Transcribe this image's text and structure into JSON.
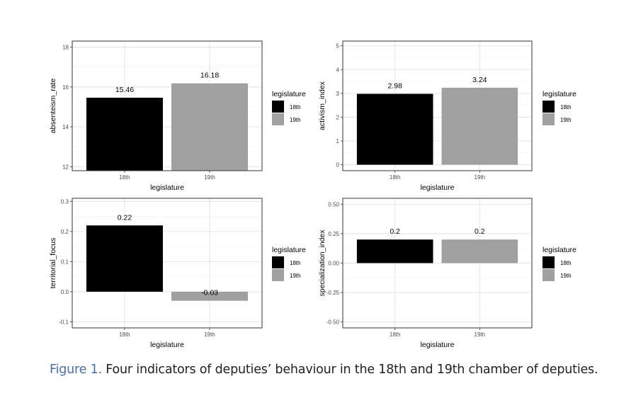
{
  "colors": {
    "s18": "#000000",
    "s19": "#a0a0a0",
    "panel_border": "#333333",
    "grid": "#e5e5e5",
    "caption_label": "#4a6fa5"
  },
  "caption": {
    "label": "Figure 1.",
    "text": "Four indicators of deputies’ behaviour in the 18th and 19th chamber of deputies."
  },
  "chart_data": [
    {
      "type": "bar",
      "categories": [
        "18th",
        "19th"
      ],
      "values": [
        15.46,
        16.18
      ],
      "value_labels": [
        "15.46",
        "16.18"
      ],
      "xlabel": "legislature",
      "ylabel": "absenteism_rate",
      "ylim": [
        11.8,
        18.3
      ],
      "baseline": 11.8,
      "yticks": [
        12,
        14,
        16,
        18
      ],
      "ytick_labels": [
        "12",
        "14",
        "16",
        "18"
      ],
      "legend": {
        "title": "legislature",
        "items": [
          "18th",
          "19th"
        ]
      }
    },
    {
      "type": "bar",
      "categories": [
        "18th",
        "19th"
      ],
      "values": [
        2.98,
        3.24
      ],
      "value_labels": [
        "2.98",
        "3.24"
      ],
      "xlabel": "legislature",
      "ylabel": "activism_index",
      "ylim": [
        -0.25,
        5.2
      ],
      "baseline": 0,
      "yticks": [
        0,
        1,
        2,
        3,
        4,
        5
      ],
      "ytick_labels": [
        "0",
        "1",
        "2",
        "3",
        "4",
        "5"
      ],
      "legend": {
        "title": "legislature",
        "items": [
          "18th",
          "19th"
        ]
      }
    },
    {
      "type": "bar",
      "categories": [
        "18th",
        "19th"
      ],
      "values": [
        0.22,
        -0.03
      ],
      "value_labels": [
        "0.22",
        "-0.03"
      ],
      "xlabel": "legislature",
      "ylabel": "territorial_focus",
      "ylim": [
        -0.12,
        0.31
      ],
      "baseline": 0,
      "yticks": [
        -0.1,
        0.0,
        0.1,
        0.2,
        0.3
      ],
      "ytick_labels": [
        "-0.1",
        "0.0",
        "0.1",
        "0.2",
        "0.3"
      ],
      "legend": {
        "title": "legislature",
        "items": [
          "18th",
          "19th"
        ]
      }
    },
    {
      "type": "bar",
      "categories": [
        "18th",
        "19th"
      ],
      "values": [
        0.2,
        0.2
      ],
      "value_labels": [
        "0.2",
        "0.2"
      ],
      "xlabel": "legislature",
      "ylabel": "specialization_index",
      "ylim": [
        -0.55,
        0.55
      ],
      "baseline": 0,
      "yticks": [
        -0.5,
        -0.25,
        0.0,
        0.25,
        0.5
      ],
      "ytick_labels": [
        "-0.50",
        "-0.25",
        "0.00",
        "0.25",
        "0.50"
      ],
      "legend": {
        "title": "legislature",
        "items": [
          "18th",
          "19th"
        ]
      }
    }
  ]
}
